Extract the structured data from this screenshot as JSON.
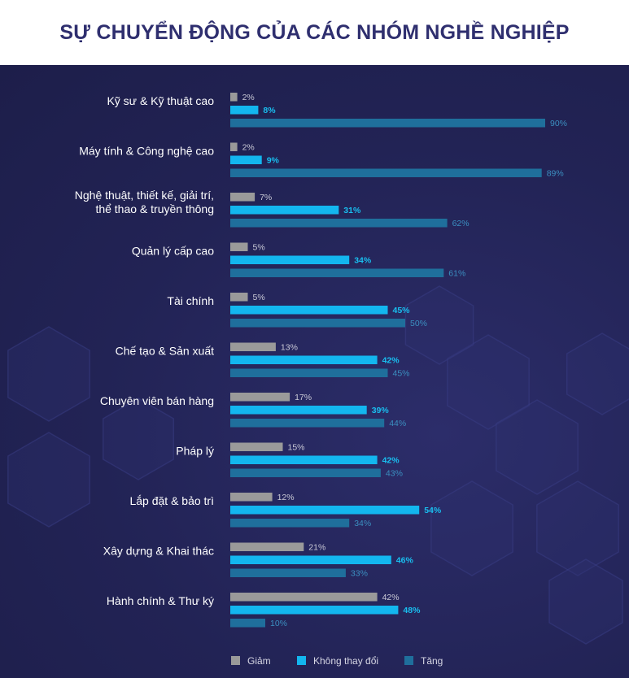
{
  "title": "SỰ CHUYỂN ĐỘNG CỦA CÁC NHÓM NGHỀ NGHIỆP",
  "chart_data": {
    "type": "bar",
    "orientation": "horizontal",
    "title": "SỰ CHUYỂN ĐỘNG CỦA CÁC NHÓM NGHỀ NGHIỆP",
    "categories": [
      [
        "Kỹ sư & Kỹ thuật cao"
      ],
      [
        "Máy tính & Công nghệ cao"
      ],
      [
        "Nghệ thuật, thiết kế, giải trí,",
        "thể thao & truyền thông"
      ],
      [
        "Quản lý cấp cao"
      ],
      [
        "Tài chính"
      ],
      [
        "Chế tạo & Sản xuất"
      ],
      [
        "Chuyên viên bán hàng"
      ],
      [
        "Pháp lý"
      ],
      [
        "Lắp đặt & bảo trì"
      ],
      [
        "Xây dựng & Khai thác"
      ],
      [
        "Hành chính & Thư ký"
      ]
    ],
    "series": [
      {
        "name": "Giảm",
        "color": "#9a9a9a",
        "values": [
          2,
          2,
          7,
          5,
          5,
          13,
          17,
          15,
          12,
          21,
          42
        ]
      },
      {
        "name": "Không thay đổi",
        "color": "#13b6ef",
        "values": [
          8,
          9,
          31,
          34,
          45,
          42,
          39,
          42,
          54,
          46,
          48
        ]
      },
      {
        "name": "Tăng",
        "color": "#1f6f9c",
        "values": [
          90,
          89,
          62,
          61,
          50,
          45,
          44,
          43,
          34,
          33,
          10
        ]
      }
    ],
    "value_suffix": "%",
    "legend_position": "bottom",
    "grid": false
  }
}
